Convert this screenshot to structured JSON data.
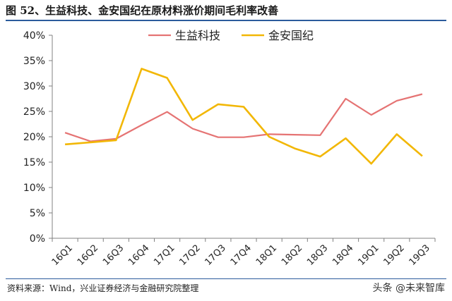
{
  "title": "图 52、生益科技、金安国纪在原材料涨价期间毛利率改善",
  "source": "资料来源：Wind，兴业证券经济与金融研究院整理",
  "watermark": "头条 @未来智库",
  "chart_data": {
    "type": "line",
    "categories": [
      "16Q1",
      "16Q2",
      "16Q3",
      "16Q4",
      "17Q1",
      "17Q2",
      "17Q3",
      "17Q4",
      "18Q1",
      "18Q2",
      "18Q3",
      "18Q4",
      "19Q1",
      "19Q2",
      "19Q3"
    ],
    "ylim": [
      0,
      40
    ],
    "yticks": [
      0,
      5,
      10,
      15,
      20,
      25,
      30,
      35,
      40
    ],
    "ytick_labels": [
      "0%",
      "5%",
      "10%",
      "15%",
      "20%",
      "25%",
      "30%",
      "35%",
      "40%"
    ],
    "grid": false,
    "legend_position": "top-center",
    "series": [
      {
        "name": "生益科技",
        "color": "#e57373",
        "values": [
          20.8,
          19.1,
          19.6,
          22.3,
          24.9,
          21.6,
          19.9,
          19.9,
          20.5,
          20.4,
          20.3,
          27.5,
          24.3,
          27.1,
          28.4
        ]
      },
      {
        "name": "金安国纪",
        "color": "#f2b705",
        "values": [
          18.5,
          18.9,
          19.3,
          33.4,
          31.6,
          23.3,
          26.4,
          25.9,
          20.0,
          17.7,
          16.1,
          19.7,
          14.7,
          20.5,
          16.2
        ]
      }
    ]
  }
}
